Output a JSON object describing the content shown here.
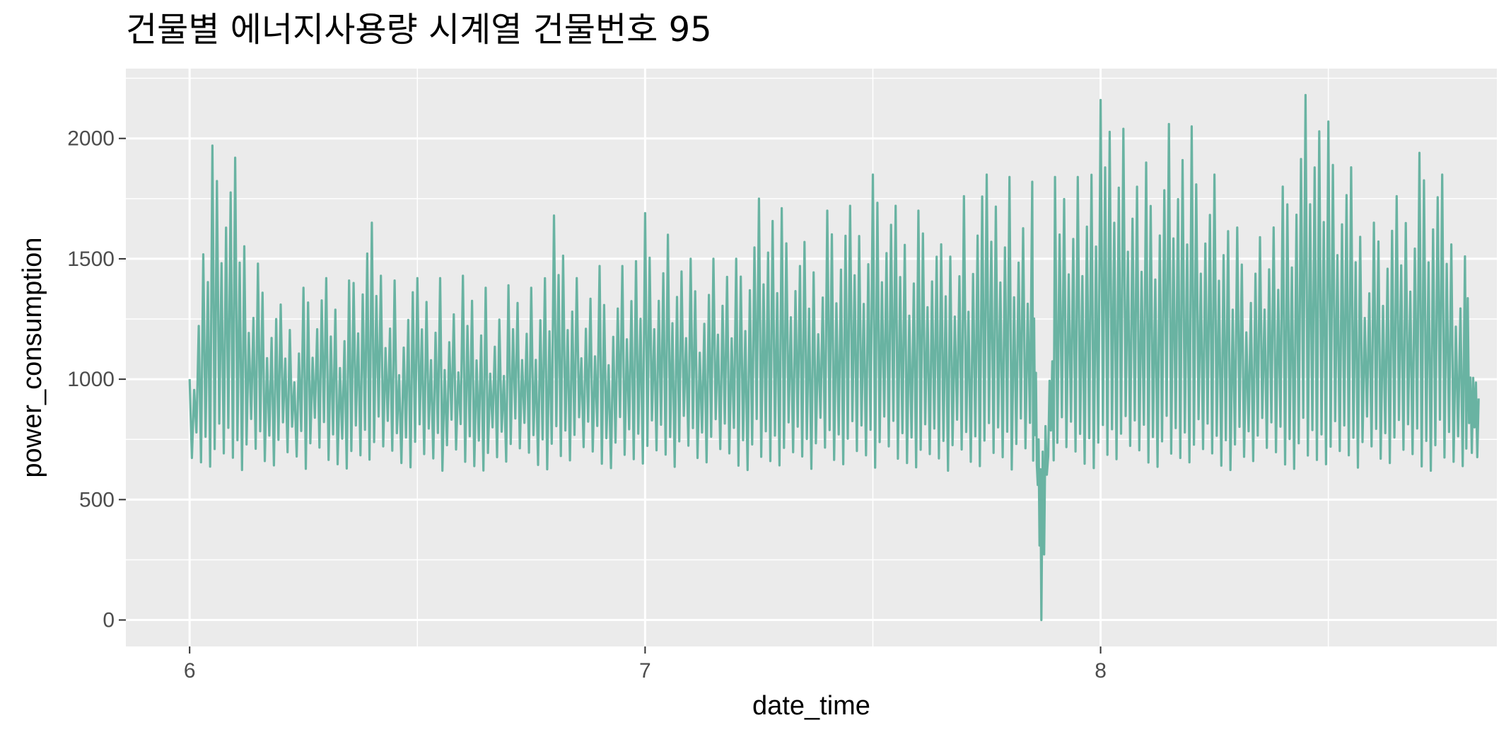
{
  "chart_data": {
    "type": "line",
    "title": "건물별 에너지사용량 시계열 건물번호 95",
    "xlabel": "date_time",
    "ylabel": "power_consumption",
    "x_ticks": [
      6,
      7,
      8
    ],
    "y_ticks": [
      0,
      500,
      1000,
      1500,
      2000
    ],
    "xlim": [
      5.86,
      8.87
    ],
    "ylim": [
      -110,
      2290
    ],
    "grid": true,
    "background": "#ebebeb",
    "line_color": "#69b3a2",
    "series": [
      {
        "x": [
          6.0,
          6.05,
          6.1,
          6.15,
          6.2,
          6.25,
          6.3,
          6.35,
          6.4,
          6.45,
          6.5,
          6.55,
          6.6,
          6.65,
          6.7,
          6.75,
          6.8,
          6.85,
          6.9,
          6.95,
          7.0,
          7.05,
          7.1,
          7.15,
          7.2,
          7.25,
          7.3,
          7.35,
          7.4,
          7.45,
          7.5,
          7.55,
          7.6,
          7.65,
          7.7,
          7.75,
          7.8,
          7.85,
          7.87,
          7.9,
          7.95,
          8.0,
          8.05,
          8.1,
          8.15,
          8.2,
          8.25,
          8.3,
          8.35,
          8.4,
          8.45,
          8.5,
          8.55,
          8.6,
          8.65,
          8.7,
          8.75,
          8.8,
          8.83
        ],
        "y": [
          1000,
          1970,
          1920,
          1480,
          1310,
          1380,
          1420,
          1410,
          1650,
          1410,
          1420,
          1420,
          1430,
          1380,
          1390,
          1380,
          1680,
          1420,
          1470,
          1470,
          1690,
          1600,
          1500,
          1500,
          1500,
          1750,
          1710,
          1570,
          1700,
          1720,
          1850,
          1720,
          1700,
          1560,
          1760,
          1850,
          1840,
          1820,
          0,
          1840,
          1840,
          2160,
          2040,
          1900,
          2060,
          2050,
          1850,
          1630,
          1590,
          1800,
          2180,
          2070,
          1880,
          1650,
          1760,
          1940,
          1850,
          1510,
          920
        ]
      }
    ]
  }
}
